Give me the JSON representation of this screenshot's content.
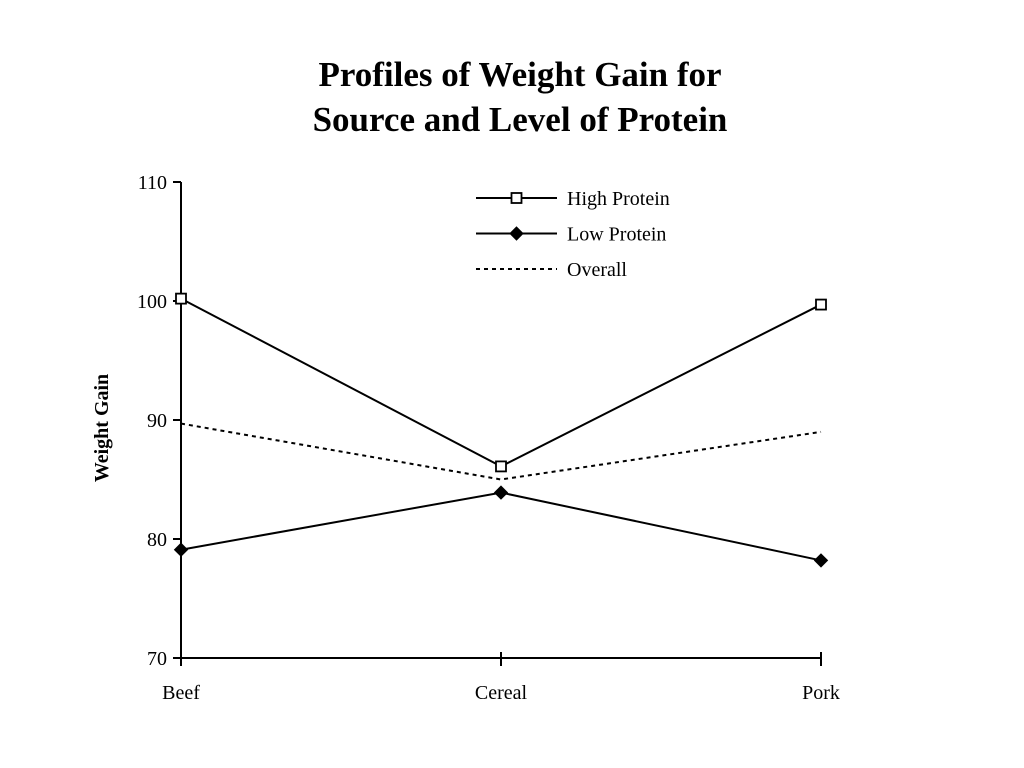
{
  "chart_data": {
    "type": "line",
    "title_lines": [
      "Profiles of Weight Gain for",
      "Source and Level of Protein"
    ],
    "xlabel": "",
    "ylabel": "Weight Gain",
    "categories": [
      "Beef",
      "Cereal",
      "Pork"
    ],
    "ylim": [
      70,
      110
    ],
    "yticks": [
      "70",
      "80",
      "90",
      "100",
      "110"
    ],
    "grid": false,
    "legend_position": "top-right",
    "series": [
      {
        "name": "High Protein",
        "values": [
          100.2,
          86.1,
          99.7
        ],
        "marker": "open-square",
        "line": "solid",
        "color": "#000000"
      },
      {
        "name": "Low Protein",
        "values": [
          79.1,
          83.9,
          78.2
        ],
        "marker": "filled-diamond",
        "line": "solid",
        "color": "#000000"
      },
      {
        "name": "Overall",
        "values": [
          89.7,
          85.0,
          89.0
        ],
        "marker": "none",
        "line": "dotted",
        "color": "#000000"
      }
    ]
  }
}
